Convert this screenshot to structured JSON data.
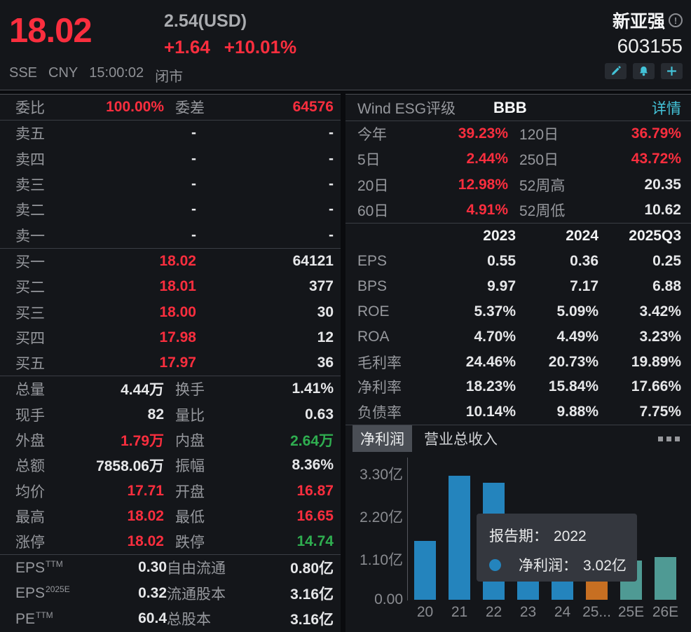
{
  "colors": {
    "red": "#fa2e3e",
    "green": "#2fae50",
    "cyan": "#43c3d8",
    "blue_bar": "#2484bd",
    "orange_bar": "#c76f22",
    "teal_bar": "#4f9a94"
  },
  "header": {
    "price": "18.02",
    "usd_price": "2.54(USD)",
    "change": "+1.64",
    "change_pct": "+10.01%",
    "exchange": "SSE",
    "currency": "CNY",
    "time": "15:00:02",
    "market_status": "闭市",
    "stock_name": "新亚强",
    "info_icon": "!",
    "stock_code": "603155"
  },
  "order_book": {
    "bid_ratio_label": "委比",
    "bid_ratio": "100.00%",
    "spread_label": "委差",
    "spread": "64576",
    "asks": [
      {
        "label": "卖五",
        "price": "-",
        "vol": "-"
      },
      {
        "label": "卖四",
        "price": "-",
        "vol": "-"
      },
      {
        "label": "卖三",
        "price": "-",
        "vol": "-"
      },
      {
        "label": "卖二",
        "price": "-",
        "vol": "-"
      },
      {
        "label": "卖一",
        "price": "-",
        "vol": "-"
      }
    ],
    "bids": [
      {
        "label": "买一",
        "price": "18.02",
        "vol": "64121"
      },
      {
        "label": "买二",
        "price": "18.01",
        "vol": "377"
      },
      {
        "label": "买三",
        "price": "18.00",
        "vol": "30"
      },
      {
        "label": "买四",
        "price": "17.98",
        "vol": "12"
      },
      {
        "label": "买五",
        "price": "17.97",
        "vol": "36"
      }
    ]
  },
  "stats": [
    {
      "l1": "总量",
      "v1": "4.44万",
      "c1": "w",
      "l2": "换手",
      "v2": "1.41%",
      "c2": "w"
    },
    {
      "l1": "现手",
      "v1": "82",
      "c1": "w",
      "l2": "量比",
      "v2": "0.63",
      "c2": "w"
    },
    {
      "l1": "外盘",
      "v1": "1.79万",
      "c1": "red",
      "l2": "内盘",
      "v2": "2.64万",
      "c2": "green"
    },
    {
      "l1": "总额",
      "v1": "7858.06万",
      "c1": "w",
      "l2": "振幅",
      "v2": "8.36%",
      "c2": "w"
    },
    {
      "l1": "均价",
      "v1": "17.71",
      "c1": "red",
      "l2": "开盘",
      "v2": "16.87",
      "c2": "red"
    },
    {
      "l1": "最高",
      "v1": "18.02",
      "c1": "red",
      "l2": "最低",
      "v2": "16.65",
      "c2": "red"
    },
    {
      "l1": "涨停",
      "v1": "18.02",
      "c1": "red",
      "l2": "跌停",
      "v2": "14.74",
      "c2": "green"
    }
  ],
  "fundamentals": [
    {
      "label": "EPS",
      "sup": "TTM",
      "value": "0.30",
      "l2": "自由流通",
      "v2": "0.80亿"
    },
    {
      "label": "EPS",
      "sup": "2025E",
      "value": "0.32",
      "l2": "流通股本",
      "v2": "3.16亿"
    },
    {
      "label": "PE",
      "sup": "TTM",
      "value": "60.4",
      "l2": "总股本",
      "v2": "3.16亿"
    }
  ],
  "esg": {
    "label": "Wind ESG评级",
    "rating": "BBB",
    "link": "详情"
  },
  "performance": [
    {
      "l1": "今年",
      "v1": "39.23%",
      "l2": "120日",
      "v2": "36.79%",
      "c2": "red"
    },
    {
      "l1": "5日",
      "v1": "2.44%",
      "l2": "250日",
      "v2": "43.72%",
      "c2": "red"
    },
    {
      "l1": "20日",
      "v1": "12.98%",
      "l2": "52周高",
      "v2": "20.35",
      "c2": "w"
    },
    {
      "l1": "60日",
      "v1": "4.91%",
      "l2": "52周低",
      "v2": "10.62",
      "c2": "w"
    }
  ],
  "financials": {
    "headers": [
      "2023",
      "2024",
      "2025Q3"
    ],
    "rows": [
      {
        "label": "EPS",
        "values": [
          "0.55",
          "0.36",
          "0.25"
        ]
      },
      {
        "label": "BPS",
        "values": [
          "9.97",
          "7.17",
          "6.88"
        ]
      },
      {
        "label": "ROE",
        "values": [
          "5.37%",
          "5.09%",
          "3.42%"
        ]
      },
      {
        "label": "ROA",
        "values": [
          "4.70%",
          "4.49%",
          "3.23%"
        ]
      },
      {
        "label": "毛利率",
        "values": [
          "24.46%",
          "20.73%",
          "19.89%"
        ]
      },
      {
        "label": "净利率",
        "values": [
          "18.23%",
          "15.84%",
          "17.66%"
        ]
      },
      {
        "label": "负债率",
        "values": [
          "10.14%",
          "9.88%",
          "7.75%"
        ]
      }
    ]
  },
  "chart": {
    "tabs": [
      {
        "label": "净利润",
        "selected": true
      },
      {
        "label": "营业总收入",
        "selected": false
      }
    ]
  },
  "chart_data": {
    "type": "bar",
    "title": "净利润",
    "unit": "亿",
    "categories": [
      "20",
      "21",
      "22",
      "23",
      "24",
      "25...",
      "25E",
      "26E"
    ],
    "values": [
      1.52,
      3.2,
      3.02,
      1.74,
      1.14,
      0.85,
      1.01,
      1.1
    ],
    "bar_colors": [
      "blue",
      "blue",
      "blue",
      "blue",
      "blue",
      "orange",
      "teal",
      "teal"
    ],
    "yticks": [
      {
        "label": "0.00",
        "value": 0
      },
      {
        "label": "1.10亿",
        "value": 1.1
      },
      {
        "label": "2.20亿",
        "value": 2.2
      },
      {
        "label": "3.30亿",
        "value": 3.3
      }
    ],
    "ylim": [
      0,
      3.66
    ],
    "xlabel": "",
    "ylabel": "",
    "legend_position": "none",
    "grid": false,
    "tooltip": {
      "period_label": "报告期：",
      "period": "2022",
      "series_label": "净利润：",
      "value": "3.02亿"
    }
  }
}
